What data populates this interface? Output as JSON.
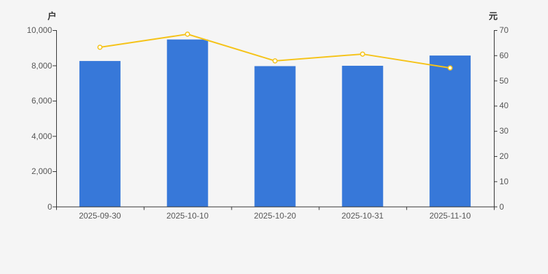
{
  "page": {
    "background": "#f5f5f5"
  },
  "chart_data": {
    "type": "bar",
    "title": "",
    "categories": [
      "2025-09-30",
      "2025-10-10",
      "2025-10-20",
      "2025-10-31",
      "2025-11-10"
    ],
    "series": [
      {
        "name": "户",
        "type": "bar",
        "y_axis": "left",
        "color": "#3778d9",
        "values": [
          8250,
          9470,
          7960,
          7980,
          8560
        ]
      },
      {
        "name": "元",
        "type": "line",
        "y_axis": "right",
        "color": "#f5c319",
        "marker": "hollow-circle",
        "values": [
          63.2,
          68.4,
          57.8,
          60.5,
          55.0
        ]
      }
    ],
    "left_axis": {
      "name": "户",
      "min": 0,
      "max": 10000,
      "tick_step": 2000,
      "tick_labels": [
        "0",
        "2,000",
        "4,000",
        "6,000",
        "8,000",
        "10,000"
      ]
    },
    "right_axis": {
      "name": "元",
      "min": 0,
      "max": 70,
      "tick_step": 10,
      "tick_labels": [
        "0",
        "10",
        "20",
        "30",
        "40",
        "50",
        "60",
        "70"
      ]
    },
    "x_axis": {
      "labels": [
        "2025-09-30",
        "2025-10-10",
        "2025-10-20",
        "2025-10-31",
        "2025-11-10"
      ]
    },
    "grid": false,
    "legend": "none",
    "colors": {
      "axis_line": "#333333",
      "tick_label": "#555555",
      "axis_name": "#333333",
      "background": "#f5f5f5",
      "marker_fill": "#ffffff"
    }
  }
}
